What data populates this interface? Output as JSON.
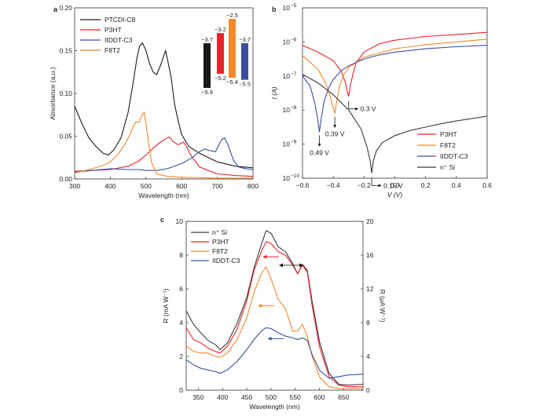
{
  "chart_data": [
    {
      "panel": "a",
      "type": "line",
      "xlabel": "Wavelength (nm)",
      "ylabel": "Absorbance (a.u.)",
      "xlim": [
        300,
        800
      ],
      "ylim": [
        0,
        0.2
      ],
      "xticks": [
        "300",
        "400",
        "500",
        "600",
        "700",
        "800"
      ],
      "yticks": [
        "0.00",
        "0.05",
        "0.10",
        "0.15",
        "0.20"
      ],
      "legend_position": "top-left",
      "series": [
        {
          "name": "PTCDI-C8",
          "color": "#1a1a1a",
          "x": [
            300,
            320,
            340,
            360,
            380,
            395,
            410,
            430,
            450,
            465,
            475,
            482,
            490,
            500,
            510,
            520,
            530,
            540,
            555,
            570,
            580,
            590,
            600,
            620,
            650,
            700,
            750,
            800
          ],
          "y": [
            0.085,
            0.065,
            0.048,
            0.038,
            0.03,
            0.028,
            0.034,
            0.048,
            0.078,
            0.115,
            0.142,
            0.155,
            0.159,
            0.15,
            0.135,
            0.125,
            0.122,
            0.132,
            0.15,
            0.12,
            0.088,
            0.068,
            0.052,
            0.038,
            0.03,
            0.02,
            0.015,
            0.013
          ]
        },
        {
          "name": "P3HT",
          "color": "#e8232a",
          "x": [
            300,
            350,
            400,
            450,
            480,
            500,
            520,
            540,
            555,
            565,
            575,
            590,
            605,
            615,
            625,
            650,
            700,
            750,
            800
          ],
          "y": [
            0.009,
            0.01,
            0.011,
            0.015,
            0.021,
            0.028,
            0.036,
            0.043,
            0.047,
            0.049,
            0.044,
            0.04,
            0.043,
            0.037,
            0.028,
            0.014,
            0.006,
            0.004,
            0.003
          ]
        },
        {
          "name": "IIDDT-C3",
          "color": "#3a4ea0",
          "x": [
            300,
            350,
            400,
            450,
            480,
            500,
            530,
            560,
            600,
            630,
            650,
            665,
            680,
            695,
            705,
            712,
            720,
            730,
            745,
            760,
            780,
            800
          ],
          "y": [
            0.008,
            0.01,
            0.012,
            0.011,
            0.011,
            0.01,
            0.01,
            0.012,
            0.018,
            0.025,
            0.032,
            0.035,
            0.033,
            0.032,
            0.04,
            0.046,
            0.048,
            0.04,
            0.022,
            0.014,
            0.012,
            0.011
          ]
        },
        {
          "name": "F8T2",
          "color": "#f5882a",
          "x": [
            300,
            350,
            380,
            400,
            420,
            440,
            455,
            465,
            472,
            480,
            488,
            495,
            505,
            515,
            530,
            560,
            600,
            700,
            800
          ],
          "y": [
            0.007,
            0.012,
            0.016,
            0.02,
            0.028,
            0.04,
            0.052,
            0.062,
            0.067,
            0.066,
            0.074,
            0.078,
            0.05,
            0.02,
            0.006,
            0.003,
            0.002,
            0.001,
            0.001
          ]
        }
      ],
      "inset": {
        "bars": [
          {
            "color": "#1a1a1a",
            "top": "−3.7",
            "bottom": "−5.9",
            "top_val": -3.7,
            "bottom_val": -5.9
          },
          {
            "color": "#e8232a",
            "top": "−3.2",
            "bottom": "−5.2",
            "top_val": -3.2,
            "bottom_val": -5.2
          },
          {
            "color": "#f5882a",
            "top": "−2.5",
            "bottom": "−5.4",
            "top_val": -2.5,
            "bottom_val": -5.4
          },
          {
            "color": "#3a4ea0",
            "top": "−3.7",
            "bottom": "−5.5",
            "top_val": -3.7,
            "bottom_val": -5.5
          }
        ]
      }
    },
    {
      "panel": "b",
      "type": "line",
      "xlabel": "V (V)",
      "ylabel": "I (A)",
      "yscale": "log",
      "xlim": [
        -0.6,
        0.6
      ],
      "ylim_exp": [
        -10,
        -5
      ],
      "xticks": [
        "−0.6",
        "−0.4",
        "−0.2",
        "0.0",
        "0.2",
        "0.4",
        "0.6"
      ],
      "xtick_values": [
        -0.6,
        -0.4,
        -0.2,
        0,
        0.2,
        0.4,
        0.6
      ],
      "ytick_base": "10",
      "ytick_exps": [
        "−10",
        "−9",
        "−8",
        "−7",
        "−6",
        "−5"
      ],
      "legend_position": "bottom-right",
      "annotations": [
        {
          "text": "0.3 V",
          "x": -0.3,
          "yexp": -7.55,
          "arrow": "right"
        },
        {
          "text": "0.39 V",
          "x": -0.39,
          "yexp": -8.1,
          "arrow": "down"
        },
        {
          "text": "0.49 V",
          "x": -0.49,
          "yexp": -8.65,
          "arrow": "down"
        },
        {
          "text": "0.15 V",
          "x": -0.15,
          "yexp": -9.8,
          "arrow": "right"
        }
      ],
      "series": [
        {
          "name": "P3HT",
          "color": "#e8232a",
          "x": [
            -0.6,
            -0.5,
            -0.4,
            -0.35,
            -0.32,
            -0.31,
            -0.3,
            -0.29,
            -0.27,
            -0.25,
            -0.2,
            -0.1,
            0,
            0.2,
            0.4,
            0.6
          ],
          "y": [
            -6.1,
            -6.3,
            -6.55,
            -6.85,
            -7.2,
            -7.45,
            -7.6,
            -7.3,
            -6.9,
            -6.6,
            -6.3,
            -6.05,
            -5.95,
            -5.84,
            -5.78,
            -5.72
          ]
        },
        {
          "name": "F8T2",
          "color": "#f5882a",
          "x": [
            -0.6,
            -0.5,
            -0.45,
            -0.42,
            -0.4,
            -0.39,
            -0.38,
            -0.36,
            -0.33,
            -0.3,
            -0.2,
            0,
            0.2,
            0.4,
            0.6
          ],
          "y": [
            -6.4,
            -6.8,
            -7.2,
            -7.6,
            -7.95,
            -8.1,
            -7.8,
            -7.3,
            -6.95,
            -6.75,
            -6.45,
            -6.2,
            -6.08,
            -6.0,
            -5.92
          ]
        },
        {
          "name": "IIDDT-C3",
          "color": "#3a4ea0",
          "x": [
            -0.6,
            -0.55,
            -0.52,
            -0.5,
            -0.49,
            -0.48,
            -0.46,
            -0.43,
            -0.4,
            -0.35,
            -0.3,
            -0.2,
            -0.1,
            0,
            0.2,
            0.4,
            0.6
          ],
          "y": [
            -7.0,
            -7.3,
            -7.8,
            -8.3,
            -8.65,
            -8.3,
            -7.75,
            -7.35,
            -7.1,
            -6.85,
            -6.7,
            -6.5,
            -6.38,
            -6.3,
            -6.2,
            -6.14,
            -6.1
          ]
        },
        {
          "name": "n⁺ Si",
          "color": "#3a3a3a",
          "x": [
            -0.6,
            -0.5,
            -0.4,
            -0.3,
            -0.22,
            -0.18,
            -0.16,
            -0.15,
            -0.14,
            -0.12,
            -0.08,
            0,
            0.1,
            0.2,
            0.3,
            0.4,
            0.5,
            0.6
          ],
          "y": [
            -6.95,
            -7.2,
            -7.55,
            -8.0,
            -8.55,
            -9.1,
            -9.5,
            -9.85,
            -9.5,
            -9.2,
            -8.95,
            -8.75,
            -8.6,
            -8.5,
            -8.4,
            -8.32,
            -8.25,
            -8.18
          ]
        }
      ]
    },
    {
      "panel": "c",
      "type": "line",
      "xlabel": "Wavelength (nm)",
      "ylabel_left": "R (mA W⁻¹)",
      "ylabel_right": "R (μA W⁻¹)",
      "xlim": [
        325,
        690
      ],
      "ylim_left": [
        0,
        10
      ],
      "ylim_right": [
        0,
        20
      ],
      "xticks": [
        "350",
        "400",
        "450",
        "500",
        "550",
        "600",
        "650"
      ],
      "xtick_values": [
        350,
        400,
        450,
        500,
        550,
        600,
        650
      ],
      "yticks_left": [
        "0",
        "2",
        "4",
        "6",
        "8",
        "10"
      ],
      "yticks_right": [
        "0",
        "4",
        "8",
        "12",
        "16",
        "20"
      ],
      "legend_position": "top-left",
      "series": [
        {
          "name": "n⁺ Si",
          "color": "#3a3a3a",
          "axis": "right",
          "x": [
            325,
            340,
            355,
            370,
            385,
            395,
            410,
            430,
            450,
            465,
            480,
            490,
            500,
            515,
            530,
            545,
            555,
            565,
            575,
            585,
            600,
            620,
            640,
            660,
            690
          ],
          "y": [
            9.4,
            7.8,
            6.8,
            5.9,
            5.4,
            4.8,
            5.6,
            7.9,
            11.0,
            14.5,
            17.2,
            18.9,
            18.6,
            17.0,
            16.4,
            15.0,
            13.8,
            14.9,
            14.2,
            10.5,
            5.8,
            2.0,
            0.7,
            0.6,
            0.7
          ]
        },
        {
          "name": "P3HT",
          "color": "#e8232a",
          "axis": "left",
          "x": [
            325,
            340,
            355,
            370,
            385,
            395,
            410,
            430,
            450,
            465,
            480,
            490,
            500,
            515,
            530,
            545,
            555,
            565,
            575,
            585,
            600,
            620,
            640,
            660,
            690
          ],
          "y": [
            3.7,
            3.0,
            2.8,
            2.5,
            2.3,
            2.2,
            2.6,
            3.6,
            5.3,
            7.1,
            8.2,
            8.8,
            8.7,
            8.2,
            8.0,
            7.4,
            6.9,
            7.4,
            7.0,
            5.0,
            2.6,
            0.8,
            0.3,
            0.2,
            0.2
          ]
        },
        {
          "name": "F8T2",
          "color": "#f5882a",
          "axis": "left",
          "x": [
            325,
            340,
            355,
            370,
            385,
            395,
            410,
            430,
            450,
            465,
            480,
            490,
            500,
            515,
            530,
            545,
            555,
            565,
            575,
            585,
            600,
            620,
            640,
            660,
            690
          ],
          "y": [
            2.6,
            2.3,
            2.2,
            2.2,
            2.0,
            1.95,
            2.2,
            3.0,
            4.3,
            5.8,
            6.9,
            7.3,
            6.6,
            5.4,
            4.8,
            3.5,
            3.5,
            3.9,
            3.2,
            2.0,
            0.8,
            0.2,
            0.1,
            0.1,
            0.1
          ]
        },
        {
          "name": "IIDDT-C3",
          "color": "#3a4ea0",
          "axis": "left",
          "x": [
            325,
            340,
            355,
            370,
            385,
            395,
            410,
            430,
            450,
            465,
            480,
            490,
            500,
            515,
            530,
            545,
            555,
            565,
            575,
            585,
            600,
            620,
            640,
            660,
            690
          ],
          "y": [
            1.8,
            1.5,
            1.3,
            1.2,
            1.1,
            1.0,
            1.2,
            1.7,
            2.4,
            3.0,
            3.5,
            3.7,
            3.65,
            3.4,
            3.2,
            3.1,
            3.0,
            3.1,
            2.95,
            2.1,
            1.2,
            0.7,
            0.8,
            0.9,
            0.95
          ]
        }
      ],
      "arrows": [
        {
          "color": "#3a3a3a",
          "x": 540,
          "yleft": 7.4,
          "dir": "both"
        },
        {
          "color": "#e8232a",
          "x": 500,
          "yleft": 7.9,
          "dir": "left"
        },
        {
          "color": "#f5882a",
          "x": 490,
          "yleft": 5.0,
          "dir": "left"
        },
        {
          "color": "#3a4ea0",
          "x": 510,
          "yleft": 3.05,
          "dir": "left"
        }
      ]
    }
  ],
  "panel_labels": {
    "a": "a",
    "b": "b",
    "c": "c"
  }
}
